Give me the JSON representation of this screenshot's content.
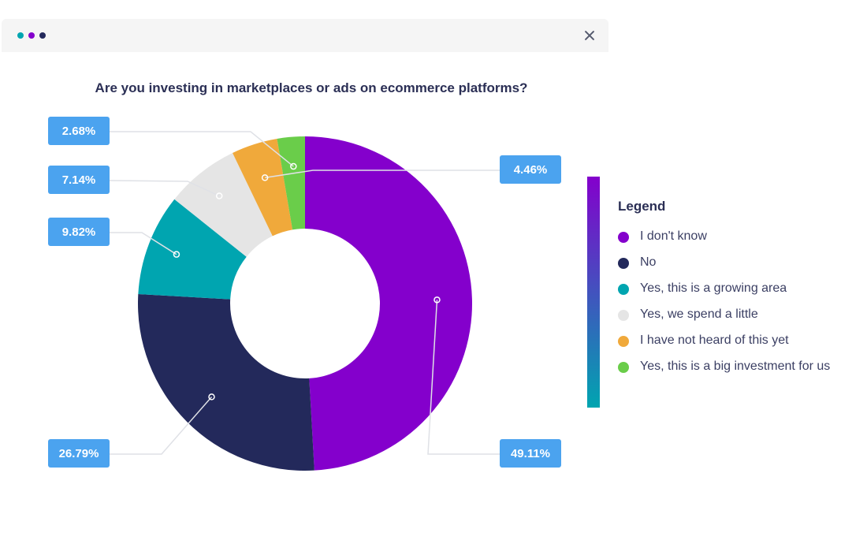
{
  "window": {
    "close_icon": "close-icon"
  },
  "chart_data": {
    "type": "pie",
    "variant": "donut",
    "title": "Are you investing in marketplaces or ads on ecommerce platforms?",
    "legend_title": "Legend",
    "legend_position": "right",
    "slices": [
      {
        "label": "I don't know",
        "value": 49.11,
        "display": "49.11%",
        "color": "#8400cc"
      },
      {
        "label": "No",
        "value": 26.79,
        "display": "26.79%",
        "color": "#23295b"
      },
      {
        "label": "Yes, this is a growing area",
        "value": 9.82,
        "display": "9.82%",
        "color": "#00a5b0"
      },
      {
        "label": "Yes, we spend a little",
        "value": 7.14,
        "display": "7.14%",
        "color": "#e5e5e5"
      },
      {
        "label": "I have not heard of this yet",
        "value": 4.46,
        "display": "4.46%",
        "color": "#f0a93b"
      },
      {
        "label": "Yes, this is a big investment for us",
        "value": 2.68,
        "display": "2.68%",
        "color": "#6acd4a"
      }
    ]
  }
}
